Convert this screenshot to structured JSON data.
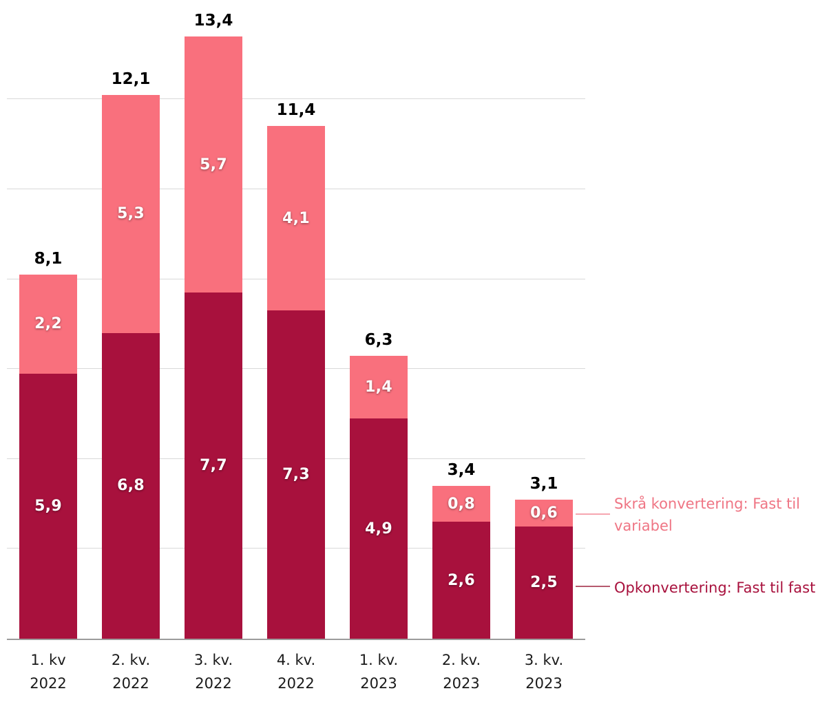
{
  "chart_data": {
    "type": "bar",
    "stacked": true,
    "orientation": "vertical",
    "categories": [
      [
        "1. kv",
        "2022"
      ],
      [
        "2. kv.",
        "2022"
      ],
      [
        "3. kv.",
        "2022"
      ],
      [
        "4. kv.",
        "2022"
      ],
      [
        "1. kv.",
        "2023"
      ],
      [
        "2. kv.",
        "2023"
      ],
      [
        "3. kv.",
        "2023"
      ]
    ],
    "series": [
      {
        "name": "Opkonvertering: Fast til fast",
        "color": "#a8113d",
        "values": [
          5.9,
          6.8,
          7.7,
          7.3,
          4.9,
          2.6,
          2.5
        ],
        "labels": [
          "5,9",
          "6,8",
          "7,7",
          "7,3",
          "4,9",
          "2,6",
          "2,5"
        ]
      },
      {
        "name": "Skrå konvertering: Fast til variabel",
        "color": "#f9707d",
        "values": [
          2.2,
          5.3,
          5.7,
          4.1,
          1.4,
          0.8,
          0.6
        ],
        "labels": [
          "2,2",
          "5,3",
          "5,7",
          "4,1",
          "1,4",
          "0,8",
          "0,6"
        ]
      }
    ],
    "totals": [
      "8,1",
      "12,1",
      "13,4",
      "11,4",
      "6,3",
      "3,4",
      "3,1"
    ],
    "total_values": [
      8.1,
      12.1,
      13.4,
      11.4,
      6.3,
      3.4,
      3.1
    ],
    "ylim": [
      0,
      14.24
    ],
    "gridlines": [
      2,
      4,
      6,
      8,
      10,
      12
    ],
    "grid": true,
    "y_axis_labels_visible": false,
    "legend_position": "right"
  },
  "legend": {
    "skra": {
      "label": "Skrå konvertering: Fast til variabel",
      "color": "#ef7584",
      "connector_color": "#f6a6b0"
    },
    "op": {
      "label": "Opkonvertering: Fast til fast",
      "color": "#a8113d",
      "connector_color": "#b65a6e"
    }
  }
}
